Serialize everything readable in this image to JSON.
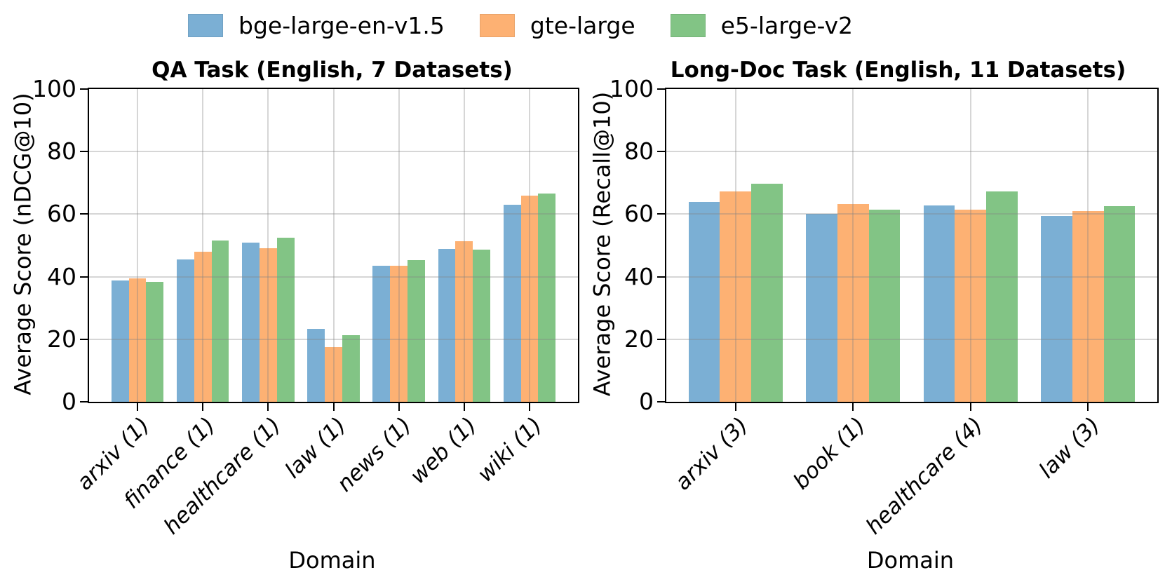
{
  "figure": {
    "background": "#ffffff",
    "grid_color": "#b0b0b0",
    "axis_color": "#000000"
  },
  "legend": {
    "position": "top-center",
    "items": [
      {
        "label": "bge-large-en-v1.5",
        "color": "#7BAFD4"
      },
      {
        "label": "gte-large",
        "color": "#FDB173"
      },
      {
        "label": "e5-large-v2",
        "color": "#82C485"
      }
    ]
  },
  "chart_data": [
    {
      "type": "bar",
      "title": "QA Task (English, 7 Datasets)",
      "xlabel": "Domain",
      "ylabel": "Average Score (nDCG@10)",
      "ylim": [
        0,
        100
      ],
      "yticks": [
        0,
        20,
        40,
        60,
        80,
        100
      ],
      "grid": true,
      "legend_position": "top",
      "categories": [
        "arxiv (1)",
        "finance (1)",
        "healthcare (1)",
        "law (1)",
        "news (1)",
        "web (1)",
        "wiki (1)"
      ],
      "series": [
        {
          "name": "bge-large-en-v1.5",
          "color": "#7BAFD4",
          "values": [
            38.8,
            45.6,
            51.0,
            23.4,
            43.6,
            48.9,
            63.0
          ]
        },
        {
          "name": "gte-large",
          "color": "#FDB173",
          "values": [
            39.4,
            48.0,
            49.1,
            17.6,
            43.6,
            51.4,
            65.9
          ]
        },
        {
          "name": "e5-large-v2",
          "color": "#82C485",
          "values": [
            38.4,
            51.5,
            52.5,
            21.2,
            45.2,
            48.6,
            66.6
          ]
        }
      ]
    },
    {
      "type": "bar",
      "title": "Long-Doc Task (English, 11 Datasets)",
      "xlabel": "Domain",
      "ylabel": "Average Score (Recall@10)",
      "ylim": [
        0,
        100
      ],
      "yticks": [
        0,
        20,
        40,
        60,
        80,
        100
      ],
      "grid": true,
      "legend_position": "top",
      "categories": [
        "arxiv (3)",
        "book (1)",
        "healthcare (4)",
        "law (3)"
      ],
      "series": [
        {
          "name": "bge-large-en-v1.5",
          "color": "#7BAFD4",
          "values": [
            63.8,
            60.1,
            62.8,
            59.4
          ]
        },
        {
          "name": "gte-large",
          "color": "#FDB173",
          "values": [
            67.2,
            63.3,
            61.4,
            61.0
          ]
        },
        {
          "name": "e5-large-v2",
          "color": "#82C485",
          "values": [
            69.8,
            61.4,
            67.2,
            62.6
          ]
        }
      ]
    }
  ]
}
